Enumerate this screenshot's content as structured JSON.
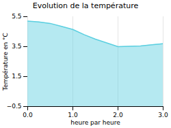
{
  "chart_data": {
    "type": "area",
    "title": "Evolution de la température",
    "xlabel": "heure par heure",
    "ylabel": "Température en °C",
    "x": [
      0,
      0.25,
      0.5,
      0.75,
      1.0,
      1.25,
      1.5,
      1.75,
      2.0,
      2.25,
      2.5,
      2.75,
      3.0
    ],
    "values": [
      5.2,
      5.15,
      5.05,
      4.85,
      4.65,
      4.3,
      4.0,
      3.75,
      3.5,
      3.52,
      3.55,
      3.62,
      3.7
    ],
    "color": "#5bcfe0",
    "xlim": [
      0,
      3
    ],
    "ylim": [
      -0.5,
      5.5
    ],
    "xticks": [
      0,
      1,
      2,
      3
    ],
    "yticks": [
      -0.5,
      1.5,
      3.5,
      5.5
    ],
    "grid": "x"
  }
}
